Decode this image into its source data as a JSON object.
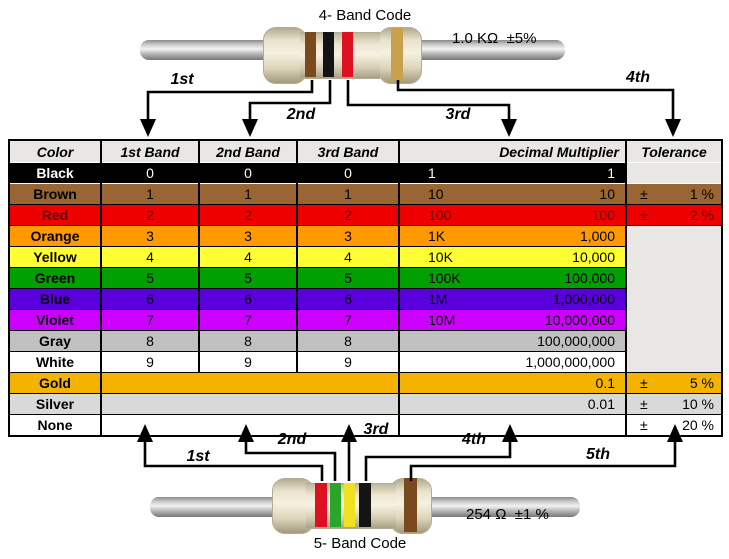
{
  "top_resistor": {
    "title": "4- Band Code",
    "value_label": "1.0 KΩ  ±5%",
    "bands": [
      {
        "name": "brown-band",
        "color": "#7a4a1e"
      },
      {
        "name": "black-band",
        "color": "#141414"
      },
      {
        "name": "red-band",
        "color": "#dd1122"
      },
      {
        "name": "gold-band",
        "color": "#c9a14e"
      }
    ],
    "arrows": [
      {
        "label": "1st"
      },
      {
        "label": "2nd"
      },
      {
        "label": "3rd"
      },
      {
        "label": "4th"
      }
    ]
  },
  "bottom_resistor": {
    "title": "5- Band Code",
    "value_label": "254 Ω  ±1 %",
    "bands": [
      {
        "name": "red-band",
        "color": "#dd1122"
      },
      {
        "name": "green-band",
        "color": "#2aa52a"
      },
      {
        "name": "yellow-band",
        "color": "#f0e020"
      },
      {
        "name": "black-band",
        "color": "#141414"
      },
      {
        "name": "brown-band",
        "color": "#7a4a1e"
      }
    ],
    "arrows": [
      {
        "label": "1st"
      },
      {
        "label": "2nd"
      },
      {
        "label": "3rd"
      },
      {
        "label": "4th"
      },
      {
        "label": "5th"
      }
    ]
  },
  "table": {
    "headers": [
      "Color",
      "1st Band",
      "2nd Band",
      "3rd Band",
      "Decimal Multiplier",
      "Tolerance"
    ],
    "header_bg": "#e9e7e3",
    "rows": [
      {
        "name": "Black",
        "bg": "#000000",
        "fg": "#ffffff",
        "digits": [
          "0",
          "0",
          "0"
        ],
        "prefix": "1",
        "multiplier": "1",
        "tol": {
          "sign": "",
          "value": ""
        },
        "tol_bg": "#e9e7e3"
      },
      {
        "name": "Brown",
        "bg": "#996633",
        "fg": "#000000",
        "digits": [
          "1",
          "1",
          "1"
        ],
        "prefix": "10",
        "multiplier": "10",
        "tol": {
          "sign": "±",
          "value": "1 %"
        },
        "tol_bg": "#996633"
      },
      {
        "name": "Red",
        "bg": "#ee0000",
        "fg": "#5a0000",
        "digits": [
          "2",
          "2",
          "2"
        ],
        "prefix": "100",
        "multiplier": "100",
        "tol": {
          "sign": "±",
          "value": "2 %"
        },
        "tol_bg": "#ee0000"
      },
      {
        "name": "Orange",
        "bg": "#ff9900",
        "fg": "#000000",
        "digits": [
          "3",
          "3",
          "3"
        ],
        "prefix": "1K",
        "multiplier": "1,000",
        "tol": {
          "sign": "",
          "value": ""
        },
        "tol_bg": "#e9e7e3",
        "tol_rowspan": 7
      },
      {
        "name": "Yellow",
        "bg": "#ffff33",
        "fg": "#000000",
        "digits": [
          "4",
          "4",
          "4"
        ],
        "prefix": "10K",
        "multiplier": "10,000",
        "tol_skip": true
      },
      {
        "name": "Green",
        "bg": "#00a000",
        "fg": "#000000",
        "digits": [
          "5",
          "5",
          "5"
        ],
        "prefix": "100K",
        "multiplier": "100,000",
        "tol_skip": true
      },
      {
        "name": "Blue",
        "bg": "#5a00dd",
        "fg": "#000000",
        "digits": [
          "6",
          "6",
          "6"
        ],
        "prefix": "1M",
        "multiplier": "1,000,000",
        "tol_skip": true
      },
      {
        "name": "Violet",
        "bg": "#cc00ff",
        "fg": "#000000",
        "digits": [
          "7",
          "7",
          "7"
        ],
        "prefix": "10M",
        "multiplier": "10,000,000",
        "tol_skip": true
      },
      {
        "name": "Gray",
        "bg": "#c0c0c0",
        "fg": "#000000",
        "digits": [
          "8",
          "8",
          "8"
        ],
        "prefix": "",
        "multiplier": "100,000,000",
        "tol_skip": true
      },
      {
        "name": "White",
        "bg": "#ffffff",
        "fg": "#000000",
        "digits": [
          "9",
          "9",
          "9"
        ],
        "prefix": "",
        "multiplier": "1,000,000,000",
        "tol_skip": true
      },
      {
        "name": "Gold",
        "bg": "#f3b300",
        "fg": "#000000",
        "digits": null,
        "prefix": "",
        "multiplier": "0.1",
        "tol": {
          "sign": "±",
          "value": "5 %"
        },
        "tol_bg": "#f3b300"
      },
      {
        "name": "Silver",
        "bg": "#d9d9d9",
        "fg": "#000000",
        "digits": null,
        "prefix": "",
        "multiplier": "0.01",
        "tol": {
          "sign": "±",
          "value": "10 %"
        },
        "tol_bg": "#d9d9d9"
      },
      {
        "name": "None",
        "bg": "#ffffff",
        "fg": "#000000",
        "digits": null,
        "prefix": "",
        "multiplier": "",
        "tol": {
          "sign": "±",
          "value": "20 %"
        },
        "tol_bg": "#ffffff"
      }
    ]
  }
}
